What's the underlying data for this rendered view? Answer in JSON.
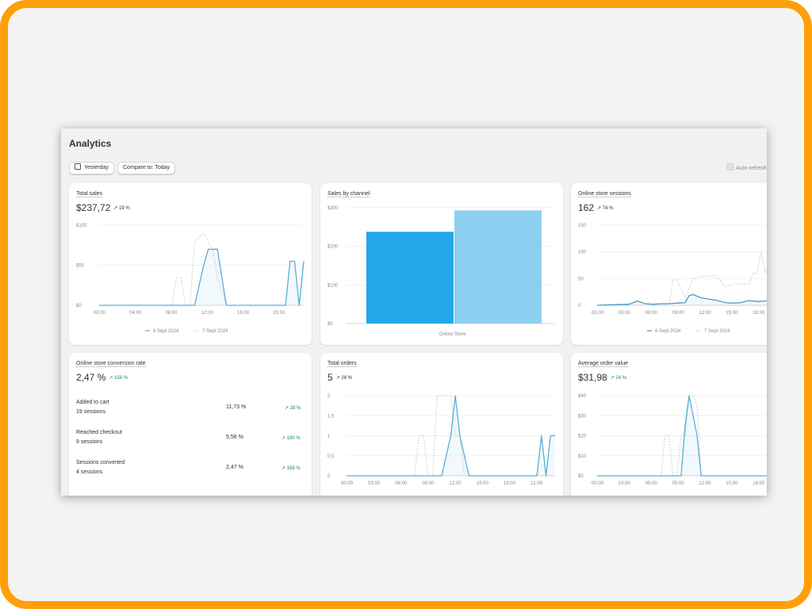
{
  "page": {
    "title": "Analytics"
  },
  "toolbar": {
    "date_label": "Yesterday",
    "compare_label": "Compare to: Today",
    "auto_refresh_label": "Auto-refresh"
  },
  "cards": {
    "total_sales": {
      "title": "Total sales",
      "value": "$237,72",
      "delta": "19 %"
    },
    "sales_by_channel": {
      "title": "Sales by channel"
    },
    "sessions": {
      "title": "Online store sessions",
      "value": "162",
      "delta": "74 %"
    },
    "conversion": {
      "title": "Online store conversion rate",
      "value": "2,47 %",
      "delta": "158 %",
      "rows": [
        {
          "label": "Added to cart",
          "sessions": "19 sessions",
          "value": "11,73 %",
          "delta": "28 %"
        },
        {
          "label": "Reached checkout",
          "sessions": "9 sessions",
          "value": "5,56 %",
          "delta": "190 %"
        },
        {
          "label": "Sessions converted",
          "sessions": "4 sessions",
          "value": "2,47 %",
          "delta": "158 %"
        }
      ]
    },
    "orders": {
      "title": "Total orders",
      "value": "5",
      "delta": "28 %"
    },
    "aov": {
      "title": "Average order value",
      "value": "$31,98",
      "delta": "24 %"
    }
  },
  "chart_data": [
    {
      "type": "line",
      "title": "Total sales",
      "x": [
        "00:00",
        "04:00",
        "08:00",
        "12:00",
        "16:00",
        "20:00"
      ],
      "yticks": [
        "$100",
        "$50",
        "$0"
      ],
      "ylim": [
        0,
        100
      ],
      "series": [
        {
          "name": "6 Sept 2024",
          "x": [
            0,
            2,
            4,
            6,
            8,
            9.5,
            10.5,
            11.5,
            12,
            13,
            14,
            16,
            18,
            20,
            20.5,
            21,
            21.5,
            22,
            22.5
          ],
          "y": [
            0,
            0,
            0,
            0,
            0,
            0,
            0,
            50,
            70,
            70,
            0,
            0,
            0,
            0,
            0,
            55,
            55,
            0,
            55
          ],
          "color": "#5aaed6"
        },
        {
          "name": "7 Sept 2024",
          "x": [
            0,
            2,
            4,
            6,
            8,
            8.5,
            9,
            9.5,
            10,
            10.5,
            11.5,
            12.5,
            13,
            14,
            16,
            18,
            20,
            22.5
          ],
          "y": [
            0,
            0,
            0,
            0,
            0,
            35,
            35,
            0,
            0,
            80,
            90,
            70,
            35,
            0,
            0,
            0,
            0,
            0
          ],
          "color": "#c8d2da"
        }
      ]
    },
    {
      "type": "bar",
      "title": "Sales by channel",
      "categories": [
        "Online Store"
      ],
      "yticks": [
        "$300",
        "$200",
        "$100",
        "$0"
      ],
      "ylim": [
        0,
        300
      ],
      "series": [
        {
          "name": "6 Sept 2024",
          "values": [
            237.72
          ],
          "color": "#21a7ea"
        },
        {
          "name": "7 Sept 2024",
          "values": [
            293
          ],
          "color": "#8ccff0"
        }
      ]
    },
    {
      "type": "line",
      "title": "Online store sessions",
      "x": [
        "00:00",
        "03:00",
        "06:00",
        "09:00",
        "12:00",
        "15:00",
        "18:00"
      ],
      "yticks": [
        "150",
        "100",
        "50",
        "0"
      ],
      "ylim": [
        0,
        150
      ],
      "series": [
        {
          "name": "6 Sept 2024",
          "x": [
            0,
            2,
            4,
            5,
            6,
            7,
            8,
            9,
            10,
            11,
            11.5,
            12,
            13,
            15,
            16,
            17,
            18,
            19,
            20,
            21,
            22.5
          ],
          "y": [
            0,
            1,
            2,
            8,
            3,
            2,
            3,
            3,
            4,
            5,
            18,
            20,
            14,
            9,
            5,
            4,
            5,
            9,
            7,
            8,
            9
          ],
          "color": "#4f9ac8"
        },
        {
          "name": "7 Sept 2024",
          "x": [
            0,
            2,
            4,
            5,
            6,
            7,
            8,
            9,
            9.5,
            10,
            10.5,
            11,
            12,
            13,
            14,
            15,
            16,
            17,
            18,
            19,
            19.5,
            20,
            20.5,
            21,
            22,
            22.5
          ],
          "y": [
            0,
            0,
            0,
            0,
            0,
            0,
            0,
            4,
            48,
            48,
            30,
            15,
            50,
            55,
            55,
            55,
            35,
            40,
            40,
            40,
            60,
            60,
            100,
            60,
            100,
            45
          ],
          "color": "#c8d2da"
        }
      ]
    },
    {
      "type": "line",
      "title": "Total orders",
      "x": [
        "00:00",
        "03:00",
        "06:00",
        "09:00",
        "12:00",
        "15:00",
        "18:00",
        "21:00"
      ],
      "yticks": [
        "2",
        "1,5",
        "1",
        "0,5",
        "0"
      ],
      "ylim": [
        0,
        2
      ],
      "series": [
        {
          "name": "6 Sept 2024",
          "x": [
            0,
            3,
            6,
            9,
            10.5,
            11.5,
            12,
            12.5,
            13.5,
            15,
            18,
            21,
            21.5,
            22,
            22.5,
            23
          ],
          "y": [
            0,
            0,
            0,
            0,
            0,
            1,
            2,
            1,
            0,
            0,
            0,
            0,
            1,
            0,
            1,
            1
          ],
          "color": "#5aaed6"
        },
        {
          "name": "7 Sept 2024",
          "x": [
            0,
            3,
            6,
            7.5,
            8,
            8.5,
            9,
            9.5,
            10,
            11,
            11.5,
            12,
            12.5,
            13,
            14,
            15,
            18,
            21,
            23
          ],
          "y": [
            0,
            0,
            0,
            0,
            1,
            1,
            0,
            0,
            2,
            2,
            2,
            1,
            1,
            0,
            0,
            0,
            0,
            0,
            0
          ],
          "color": "#c8d2da"
        }
      ]
    },
    {
      "type": "line",
      "title": "Average order value",
      "x": [
        "00:00",
        "03:00",
        "06:00",
        "09:00",
        "12:00",
        "15:00",
        "18:00"
      ],
      "yticks": [
        "$40",
        "$30",
        "$20",
        "$10",
        "$0"
      ],
      "ylim": [
        0,
        40
      ],
      "series": [
        {
          "name": "6 Sept 2024",
          "x": [
            0,
            3,
            6,
            9,
            10,
            10.5,
            11,
            11.5,
            12,
            12.5,
            13,
            14,
            15,
            18,
            21,
            22.5
          ],
          "y": [
            0,
            0,
            0,
            0,
            0,
            0,
            25,
            40,
            30,
            20,
            0,
            0,
            0,
            0,
            0,
            0
          ],
          "color": "#5aaed6"
        },
        {
          "name": "7 Sept 2024",
          "x": [
            0,
            3,
            6,
            8,
            8.5,
            9,
            9.5,
            10,
            10.5,
            11,
            11.5,
            12,
            12.5,
            13,
            13.5,
            14,
            15,
            18,
            21,
            22.5
          ],
          "y": [
            0,
            0,
            0,
            0,
            20,
            20,
            0,
            0,
            20,
            20,
            40,
            40,
            35,
            0,
            0,
            0,
            0,
            0,
            0,
            0
          ],
          "color": "#c8d2da"
        }
      ]
    }
  ]
}
